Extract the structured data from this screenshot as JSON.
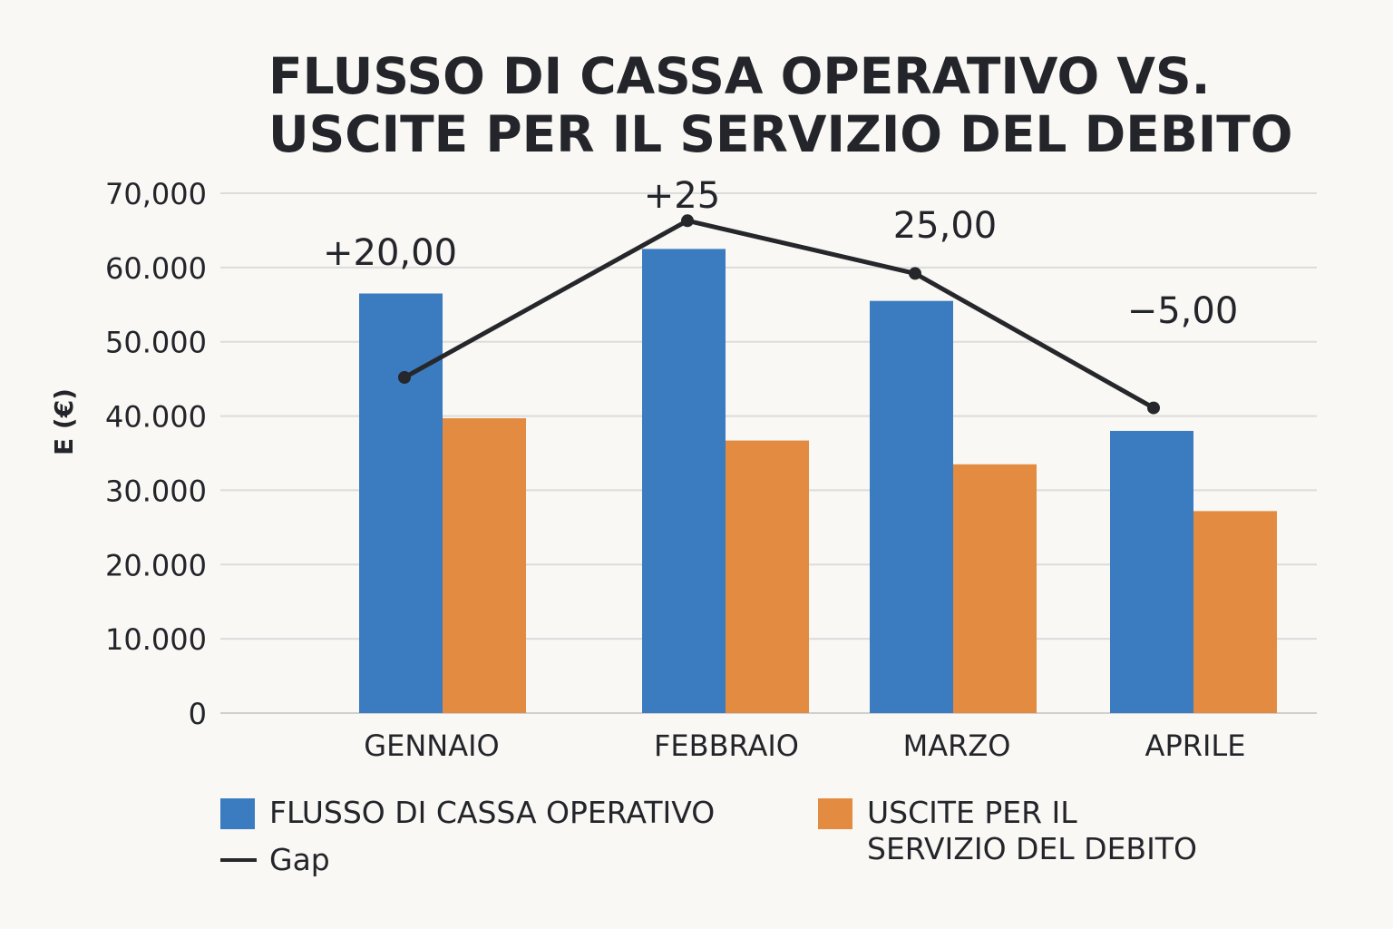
{
  "chart_data": {
    "type": "bar",
    "title": "FLUSSO DI CASSA OPERATIVO VS. USCITE PER IL SERVIZIO DEL DEBITO",
    "title_lines": [
      "FLUSSO DI CASSA OPERATIVO VS.",
      "USCITE PER IL SERVIZIO DEL DEBITO"
    ],
    "ylabel": "E (€)",
    "xlabel": "",
    "ylim": [
      0,
      70000
    ],
    "ytick_values": [
      0,
      10000,
      20000,
      30000,
      40000,
      50000,
      60000,
      70000
    ],
    "ytick_labels": [
      "0",
      "10.000",
      "20.000",
      "30.000",
      "40.000",
      "50.000",
      "60.000",
      "70,000"
    ],
    "grid": true,
    "categories": [
      "GENNAIO",
      "FEBBRAIO",
      "MARZO",
      "APRILE"
    ],
    "series": [
      {
        "name": "FLUSSO DI CASSA OPERATIVO",
        "type": "bar",
        "color": "#3b7bbf",
        "values": [
          56500,
          62500,
          55500,
          38000
        ]
      },
      {
        "name": "USCITE PER IL SERVIZIO DEL DEBITO",
        "type": "bar",
        "color": "#e38b40",
        "values": [
          39700,
          36700,
          33500,
          27200
        ]
      },
      {
        "name": "Gap",
        "type": "line",
        "color": "#25272b",
        "values": [
          45200,
          66300,
          59200,
          41100
        ]
      }
    ],
    "annotations": [
      "+20,00",
      "+25",
      "25,00",
      "−5,00"
    ],
    "legend_position": "bottom"
  },
  "legend": {
    "items": [
      {
        "label": "FLUSSO DI CASSA OPERATIVO",
        "color": "#3b7bbf"
      },
      {
        "label_lines": [
          "USCITE PER IL",
          "SERVIZIO DEL DEBITO"
        ],
        "color": "#e38b40"
      },
      {
        "label": "Gap",
        "color": "#25272b"
      }
    ]
  }
}
